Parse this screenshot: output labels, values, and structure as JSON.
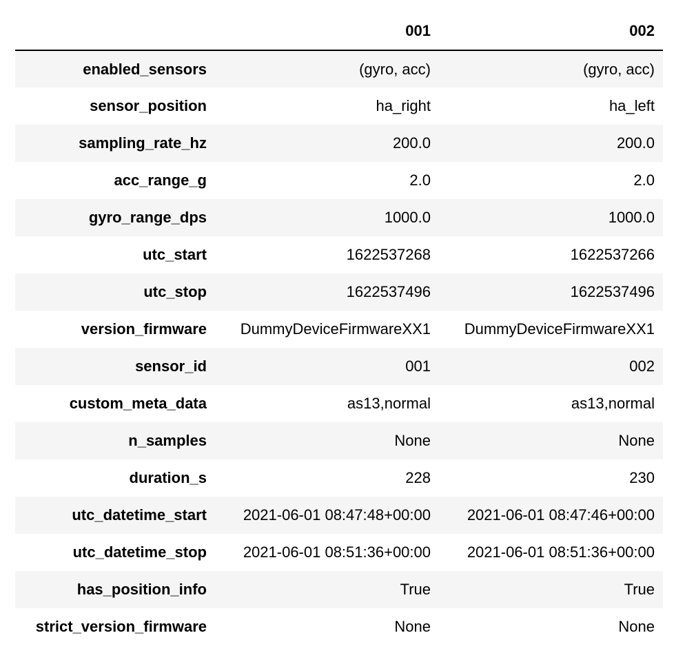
{
  "table": {
    "index_header": "",
    "columns": [
      "001",
      "002"
    ],
    "rows": [
      {
        "label": "enabled_sensors",
        "values": [
          "(gyro, acc)",
          "(gyro, acc)"
        ]
      },
      {
        "label": "sensor_position",
        "values": [
          "ha_right",
          "ha_left"
        ]
      },
      {
        "label": "sampling_rate_hz",
        "values": [
          "200.0",
          "200.0"
        ]
      },
      {
        "label": "acc_range_g",
        "values": [
          "2.0",
          "2.0"
        ]
      },
      {
        "label": "gyro_range_dps",
        "values": [
          "1000.0",
          "1000.0"
        ]
      },
      {
        "label": "utc_start",
        "values": [
          "1622537268",
          "1622537266"
        ]
      },
      {
        "label": "utc_stop",
        "values": [
          "1622537496",
          "1622537496"
        ]
      },
      {
        "label": "version_firmware",
        "values": [
          "DummyDeviceFirmwareXX1",
          "DummyDeviceFirmwareXX1"
        ]
      },
      {
        "label": "sensor_id",
        "values": [
          "001",
          "002"
        ]
      },
      {
        "label": "custom_meta_data",
        "values": [
          "as13,normal",
          "as13,normal"
        ]
      },
      {
        "label": "n_samples",
        "values": [
          "None",
          "None"
        ]
      },
      {
        "label": "duration_s",
        "values": [
          "228",
          "230"
        ]
      },
      {
        "label": "utc_datetime_start",
        "values": [
          "2021-06-01 08:47:48+00:00",
          "2021-06-01 08:47:46+00:00"
        ]
      },
      {
        "label": "utc_datetime_stop",
        "values": [
          "2021-06-01 08:51:36+00:00",
          "2021-06-01 08:51:36+00:00"
        ]
      },
      {
        "label": "has_position_info",
        "values": [
          "True",
          "True"
        ]
      },
      {
        "label": "strict_version_firmware",
        "values": [
          "None",
          "None"
        ]
      }
    ]
  },
  "colors": {
    "stripe": "#f5f5f5",
    "background": "#ffffff",
    "rule": "#000000",
    "text": "#000000"
  }
}
